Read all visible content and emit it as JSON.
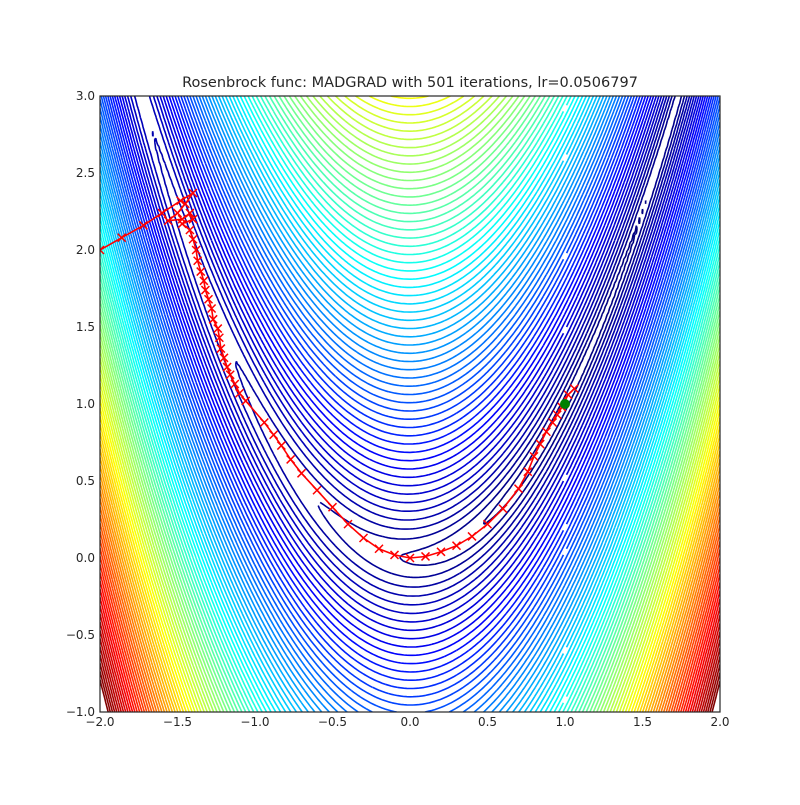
{
  "chart_data": {
    "type": "line",
    "title": "Rosenbrock func: MADGRAD with 501 iterations, lr=0.0506797",
    "xlabel": "",
    "ylabel": "",
    "xlim": [
      -2.0,
      2.0
    ],
    "ylim": [
      -1.0,
      3.0
    ],
    "x_ticks": [
      "−2.0",
      "−1.5",
      "−1.0",
      "−0.5",
      "0.0",
      "0.5",
      "1.0",
      "1.5",
      "2.0"
    ],
    "y_ticks": [
      "−1.0",
      "−0.5",
      "0.0",
      "0.5",
      "1.0",
      "1.5",
      "2.0",
      "2.5",
      "3.0"
    ],
    "grid": false,
    "contour": {
      "function": "rosenbrock",
      "colormap": "jet",
      "levels_sqrt_max": 48,
      "levels_count": 90
    },
    "path": {
      "name": "",
      "color": "#ff0000",
      "marker": "x",
      "points": [
        [
          -2.0,
          2.0
        ],
        [
          -1.86,
          2.08
        ],
        [
          -1.72,
          2.16
        ],
        [
          -1.6,
          2.24
        ],
        [
          -1.48,
          2.32
        ],
        [
          -1.4,
          2.37
        ],
        [
          -1.45,
          2.3
        ],
        [
          -1.5,
          2.24
        ],
        [
          -1.56,
          2.19
        ],
        [
          -1.47,
          2.2
        ],
        [
          -1.42,
          2.24
        ],
        [
          -1.4,
          2.2
        ],
        [
          -1.47,
          2.17
        ],
        [
          -1.42,
          2.13
        ],
        [
          -1.4,
          2.07
        ],
        [
          -1.38,
          2.0
        ],
        [
          -1.37,
          1.93
        ],
        [
          -1.35,
          1.86
        ],
        [
          -1.33,
          1.8
        ],
        [
          -1.32,
          1.74
        ],
        [
          -1.3,
          1.68
        ],
        [
          -1.28,
          1.62
        ],
        [
          -1.27,
          1.55
        ],
        [
          -1.24,
          1.49
        ],
        [
          -1.23,
          1.43
        ],
        [
          -1.22,
          1.36
        ],
        [
          -1.2,
          1.3
        ],
        [
          -1.18,
          1.24
        ],
        [
          -1.16,
          1.19
        ],
        [
          -1.13,
          1.13
        ],
        [
          -1.1,
          1.07
        ],
        [
          -1.06,
          1.02
        ],
        [
          -0.94,
          0.88
        ],
        [
          -0.88,
          0.8
        ],
        [
          -0.83,
          0.73
        ],
        [
          -0.77,
          0.64
        ],
        [
          -0.7,
          0.55
        ],
        [
          -0.6,
          0.44
        ],
        [
          -0.5,
          0.33
        ],
        [
          -0.4,
          0.22
        ],
        [
          -0.3,
          0.13
        ],
        [
          -0.2,
          0.06
        ],
        [
          -0.1,
          0.02
        ],
        [
          0.0,
          0.0
        ],
        [
          0.1,
          0.01
        ],
        [
          0.2,
          0.04
        ],
        [
          0.3,
          0.08
        ],
        [
          0.4,
          0.14
        ],
        [
          0.5,
          0.22
        ],
        [
          0.6,
          0.32
        ],
        [
          0.7,
          0.45
        ],
        [
          0.76,
          0.56
        ],
        [
          0.8,
          0.66
        ],
        [
          0.84,
          0.74
        ],
        [
          0.88,
          0.82
        ],
        [
          0.92,
          0.88
        ],
        [
          0.95,
          0.93
        ],
        [
          0.98,
          0.98
        ],
        [
          1.02,
          1.06
        ],
        [
          1.06,
          1.1
        ]
      ]
    },
    "end_point": {
      "x": 1.0,
      "y": 1.0,
      "color": "#008000"
    }
  }
}
